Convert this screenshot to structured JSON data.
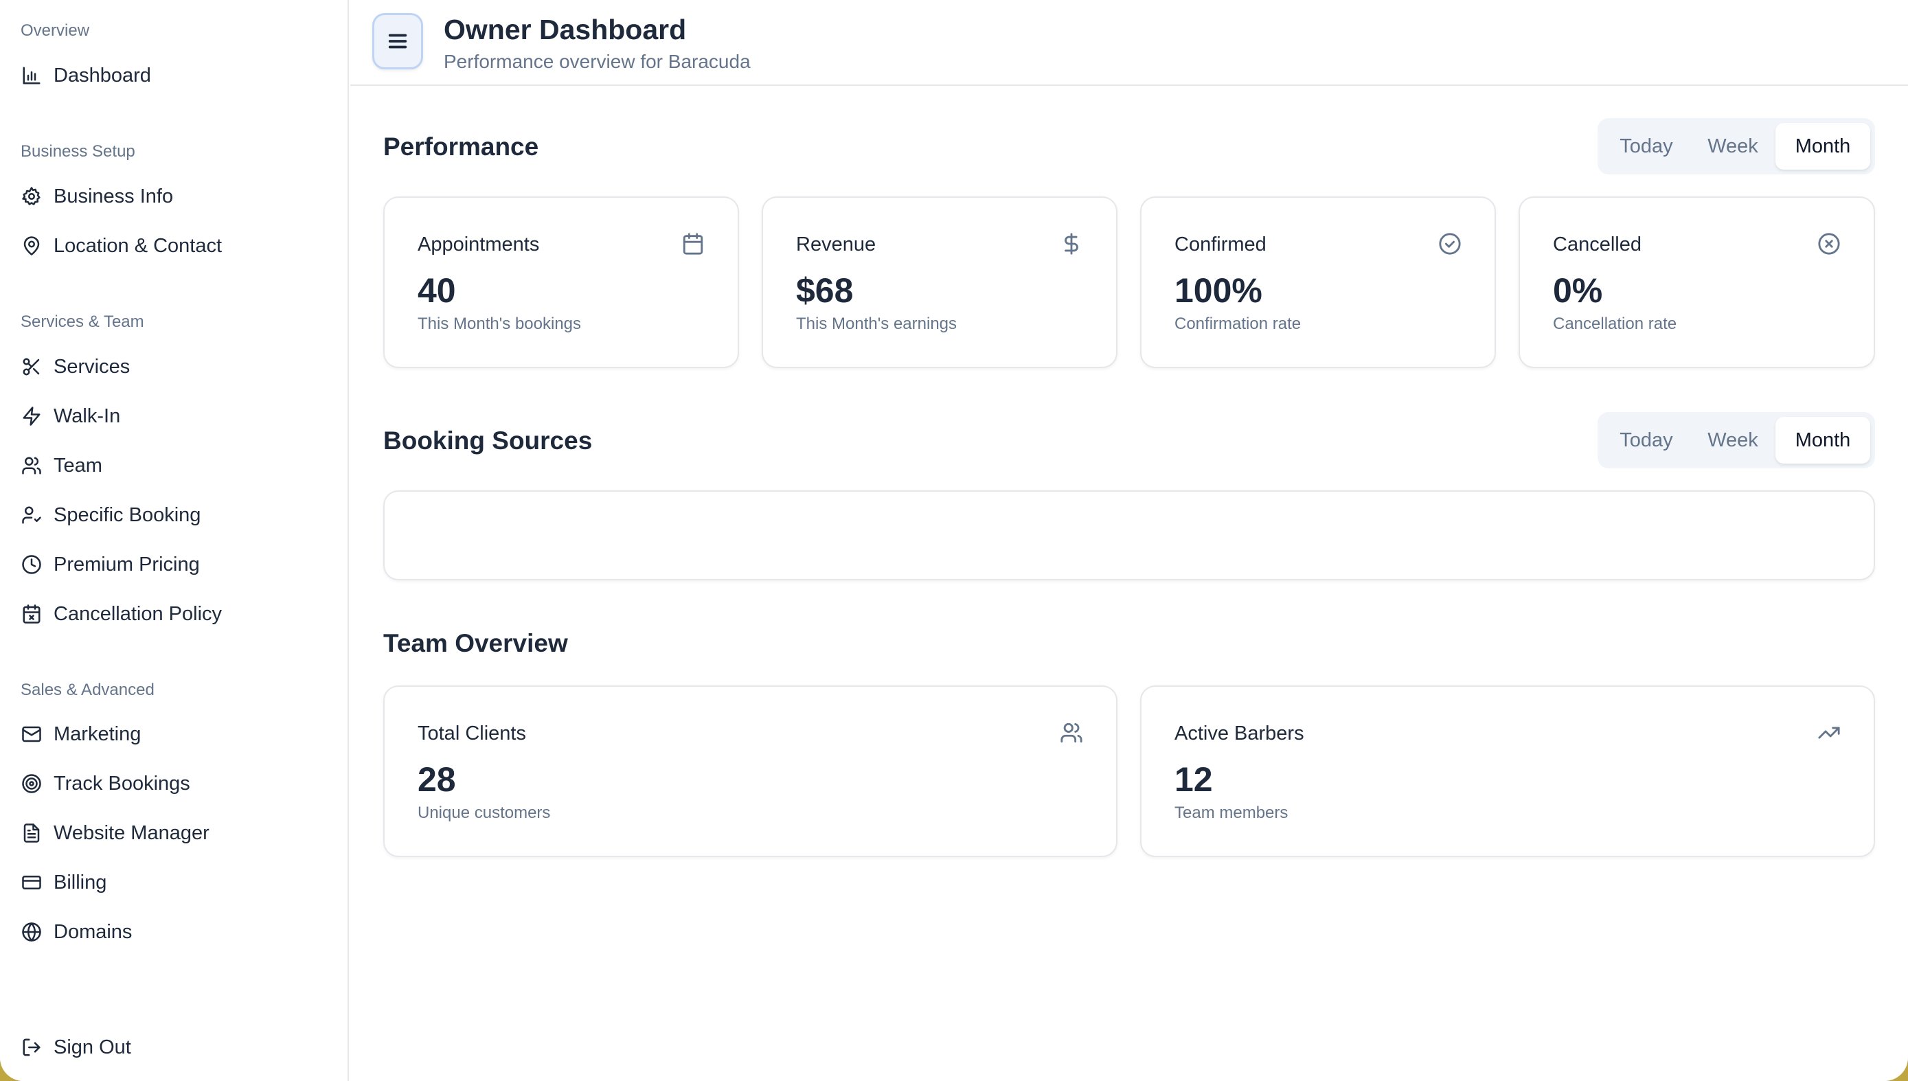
{
  "sidebar": {
    "groups": [
      {
        "title": "Overview",
        "items": [
          {
            "label": "Dashboard",
            "icon": "bar-chart-icon"
          }
        ]
      },
      {
        "title": "Business Setup",
        "items": [
          {
            "label": "Business Info",
            "icon": "gear-icon"
          },
          {
            "label": "Location & Contact",
            "icon": "map-pin-icon"
          }
        ]
      },
      {
        "title": "Services & Team",
        "items": [
          {
            "label": "Services",
            "icon": "scissors-icon"
          },
          {
            "label": "Walk-In",
            "icon": "lightning-icon"
          },
          {
            "label": "Team",
            "icon": "users-icon"
          },
          {
            "label": "Specific Booking",
            "icon": "user-check-icon"
          },
          {
            "label": "Premium Pricing",
            "icon": "clock-icon"
          },
          {
            "label": "Cancellation Policy",
            "icon": "calendar-x-icon"
          }
        ]
      },
      {
        "title": "Sales & Advanced",
        "items": [
          {
            "label": "Marketing",
            "icon": "mail-icon"
          },
          {
            "label": "Track Bookings",
            "icon": "target-icon"
          },
          {
            "label": "Website Manager",
            "icon": "file-icon"
          },
          {
            "label": "Billing",
            "icon": "credit-card-icon"
          },
          {
            "label": "Domains",
            "icon": "globe-icon"
          }
        ]
      }
    ],
    "sign_out": {
      "label": "Sign Out",
      "icon": "log-out-icon"
    }
  },
  "header": {
    "title": "Owner Dashboard",
    "subtitle": "Performance overview for Baracuda",
    "menu_icon": "menu-icon"
  },
  "performance": {
    "title": "Performance",
    "range": {
      "options": [
        "Today",
        "Week",
        "Month"
      ],
      "selected": "Month"
    },
    "cards": [
      {
        "label": "Appointments",
        "value": "40",
        "sub": "This Month's bookings",
        "icon": "calendar-icon"
      },
      {
        "label": "Revenue",
        "value": "$68",
        "sub": "This Month's earnings",
        "icon": "dollar-icon"
      },
      {
        "label": "Confirmed",
        "value": "100%",
        "sub": "Confirmation rate",
        "icon": "check-circle-icon"
      },
      {
        "label": "Cancelled",
        "value": "0%",
        "sub": "Cancellation rate",
        "icon": "x-circle-icon"
      }
    ]
  },
  "booking_sources": {
    "title": "Booking Sources",
    "range": {
      "options": [
        "Today",
        "Week",
        "Month"
      ],
      "selected": "Month"
    }
  },
  "team_overview": {
    "title": "Team Overview",
    "cards": [
      {
        "label": "Total Clients",
        "value": "28",
        "sub": "Unique customers",
        "icon": "users-icon"
      },
      {
        "label": "Active Barbers",
        "value": "12",
        "sub": "Team members",
        "icon": "trending-up-icon"
      }
    ]
  },
  "colors": {
    "accent_border": "#bfd4f5",
    "muted_text": "#64748b",
    "primary_text": "#1e293b"
  }
}
